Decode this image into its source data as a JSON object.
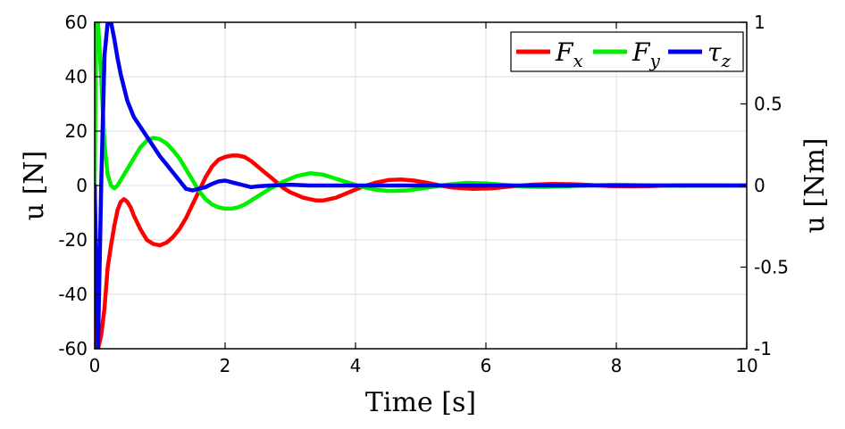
{
  "chart_data": {
    "type": "line",
    "xlabel": "Time [s]",
    "ylabel_left": "u [N]",
    "ylabel_right": "u [Nm]",
    "xlim": [
      0,
      10
    ],
    "ylim_left": [
      -60,
      60
    ],
    "ylim_right": [
      -1,
      1
    ],
    "xticks": [
      "0",
      "2",
      "4",
      "6",
      "8",
      "10"
    ],
    "yticks_left": [
      "-60",
      "-40",
      "-20",
      "0",
      "20",
      "40",
      "60"
    ],
    "yticks_right": [
      "-1",
      "-0.5",
      "0",
      "0.5",
      "1"
    ],
    "grid": true,
    "legend_position": "top-right",
    "series": [
      {
        "name": "F_x",
        "label_main": "F",
        "label_sub": "x",
        "axis": "left",
        "color": "#ff0000",
        "x": [
          0,
          0.02,
          0.05,
          0.1,
          0.15,
          0.2,
          0.25,
          0.3,
          0.35,
          0.4,
          0.45,
          0.5,
          0.55,
          0.6,
          0.7,
          0.8,
          0.9,
          1.0,
          1.1,
          1.2,
          1.3,
          1.4,
          1.5,
          1.6,
          1.7,
          1.8,
          1.9,
          2.0,
          2.1,
          2.2,
          2.3,
          2.4,
          2.5,
          2.6,
          2.7,
          2.8,
          2.9,
          3.0,
          3.2,
          3.4,
          3.5,
          3.7,
          3.9,
          4.1,
          4.3,
          4.5,
          4.7,
          4.9,
          5.1,
          5.3,
          5.5,
          5.8,
          6.1,
          6.4,
          6.7,
          7.0,
          7.3,
          7.6,
          7.9,
          8.2,
          8.5,
          8.8,
          9.1,
          9.4,
          9.7,
          10.0
        ],
        "y": [
          0,
          -60,
          -60,
          -55,
          -45,
          -30,
          -22,
          -15,
          -9,
          -6,
          -5,
          -6,
          -8,
          -11,
          -16,
          -20,
          -21.5,
          -22,
          -21,
          -19,
          -16,
          -12,
          -7,
          -2,
          3,
          7,
          9.5,
          10.5,
          11,
          11,
          10.5,
          9,
          7,
          5,
          3,
          1,
          -1,
          -2.5,
          -4.5,
          -5.5,
          -5.5,
          -4.5,
          -2.5,
          -0.5,
          1,
          2,
          2.2,
          1.8,
          1,
          0,
          -0.8,
          -1.2,
          -1,
          -0.3,
          0.3,
          0.6,
          0.5,
          0.2,
          -0.2,
          -0.3,
          -0.2,
          0,
          0.1,
          0.1,
          0,
          0
        ]
      },
      {
        "name": "F_y",
        "label_main": "F",
        "label_sub": "y",
        "axis": "left",
        "color": "#00ee00",
        "x": [
          0,
          0.02,
          0.05,
          0.1,
          0.15,
          0.2,
          0.25,
          0.3,
          0.35,
          0.4,
          0.5,
          0.6,
          0.7,
          0.8,
          0.9,
          1.0,
          1.1,
          1.2,
          1.3,
          1.4,
          1.5,
          1.6,
          1.7,
          1.8,
          1.9,
          2.0,
          2.1,
          2.2,
          2.3,
          2.4,
          2.5,
          2.7,
          2.9,
          3.1,
          3.3,
          3.5,
          3.7,
          3.9,
          4.1,
          4.3,
          4.5,
          4.8,
          5.1,
          5.4,
          5.7,
          6.0,
          6.3,
          6.6,
          6.9,
          7.2,
          7.6,
          8.0,
          8.5,
          9.0,
          9.5,
          10.0
        ],
        "y": [
          0,
          60,
          60,
          40,
          15,
          4,
          0,
          -1,
          0,
          2,
          6,
          10,
          14,
          16.5,
          17.5,
          17,
          15.5,
          13,
          10,
          6,
          2,
          -2,
          -5,
          -7,
          -8,
          -8.5,
          -8.5,
          -8,
          -7,
          -5.5,
          -4,
          -1,
          1.5,
          3.5,
          4.5,
          4,
          2.5,
          1,
          -0.5,
          -1.5,
          -2,
          -1.8,
          -0.8,
          0.3,
          1,
          0.8,
          0.2,
          -0.4,
          -0.5,
          -0.3,
          0.1,
          0.3,
          0.1,
          -0.1,
          0,
          0
        ]
      },
      {
        "name": "tau_z",
        "label_main": "τ",
        "label_sub": "z",
        "axis": "right",
        "color": "#0000ee",
        "x": [
          0,
          0.05,
          0.1,
          0.15,
          0.2,
          0.25,
          0.3,
          0.35,
          0.4,
          0.5,
          0.6,
          0.7,
          0.8,
          0.9,
          1.0,
          1.1,
          1.2,
          1.3,
          1.4,
          1.5,
          1.6,
          1.7,
          1.8,
          1.9,
          2.0,
          2.1,
          2.2,
          2.3,
          2.4,
          2.5,
          2.7,
          3.0,
          3.3,
          3.6,
          4.0,
          4.5,
          5.0,
          6.0,
          7.0,
          8.0,
          9.0,
          10.0
        ],
        "y": [
          0,
          -1,
          0,
          0.8,
          1.0,
          1.0,
          0.9,
          0.78,
          0.68,
          0.52,
          0.42,
          0.36,
          0.3,
          0.24,
          0.18,
          0.13,
          0.08,
          0.03,
          -0.02,
          -0.03,
          -0.02,
          -0.01,
          0.01,
          0.025,
          0.03,
          0.02,
          0.01,
          0.0,
          -0.01,
          -0.005,
          0.0,
          0.005,
          0.0,
          0.0,
          0.0,
          0.0,
          0.0,
          0.0,
          0.0,
          0.0,
          0.0,
          0.0
        ]
      }
    ]
  }
}
